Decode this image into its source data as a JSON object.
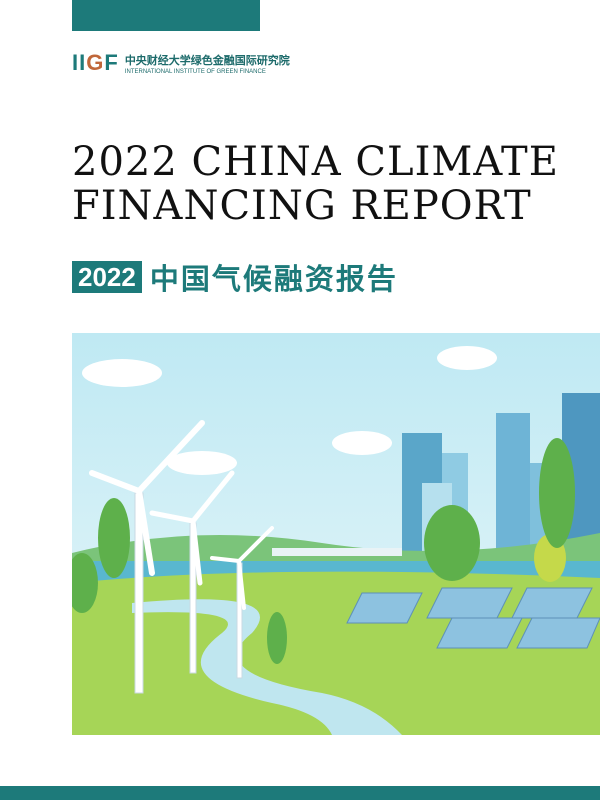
{
  "logo": {
    "mark": "IIGF",
    "name_cn": "中央财经大学绿色金融国际研究院",
    "name_en": "INTERNATIONAL INSTITUTE OF GREEN FINANCE"
  },
  "title": {
    "line1": "2022 CHINA CLIMATE",
    "line2": "FINANCING REPORT"
  },
  "subtitle": {
    "year": "2022",
    "cn": "中国气候融资报告"
  },
  "colors": {
    "brand": "#1d7a7a",
    "accent": "#c0673a"
  }
}
